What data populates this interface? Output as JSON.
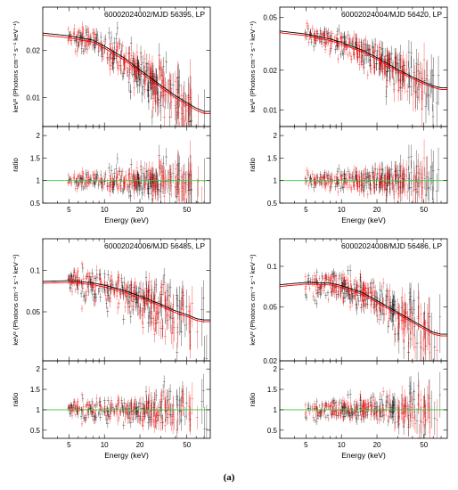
{
  "figure": {
    "caption": "(a)"
  },
  "chart_data": [
    {
      "type": "scatter",
      "title": "60002024002/MJD 56395, LP",
      "xlabel": "Energy (keV)",
      "ylabel_top": "keV² (Photons cm⁻² s⁻¹ keV⁻¹)",
      "ylabel_bottom": "ratio",
      "xscale": "log",
      "yscale_top": "log",
      "xlim": [
        3,
        79
      ],
      "ylim_top": [
        0.0065,
        0.038
      ],
      "ylim_bottom": [
        0.5,
        2.2
      ],
      "xticks": [
        5,
        10,
        20,
        50
      ],
      "yticks_top": [
        0.01,
        0.02
      ],
      "yticks_bottom": [
        0.5,
        1,
        1.5,
        2
      ],
      "model": {
        "x": [
          3,
          5,
          8,
          10,
          15,
          20,
          30,
          40,
          50,
          60,
          70
        ],
        "y": [
          0.0255,
          0.0245,
          0.023,
          0.021,
          0.0175,
          0.0148,
          0.0118,
          0.0101,
          0.0091,
          0.0084,
          0.008
        ]
      },
      "series": [
        {
          "color": "#000000",
          "spread": 0.11
        },
        {
          "color": "#ff0000",
          "spread": 0.11
        }
      ]
    },
    {
      "type": "scatter",
      "title": "60002024004/MJD 56420, LP",
      "xlabel": "Energy (keV)",
      "ylabel_top": "keV² (Photons cm⁻² s⁻¹ keV⁻¹)",
      "ylabel_bottom": "ratio",
      "xscale": "log",
      "yscale_top": "log",
      "xlim": [
        3,
        79
      ],
      "ylim_top": [
        0.0075,
        0.06
      ],
      "ylim_bottom": [
        0.5,
        2.2
      ],
      "xticks": [
        5,
        10,
        20,
        50
      ],
      "yticks_top": [
        0.01,
        0.02,
        0.05
      ],
      "yticks_bottom": [
        0.5,
        1,
        1.5,
        2
      ],
      "model": {
        "x": [
          3,
          5,
          8,
          10,
          15,
          20,
          30,
          40,
          50,
          60,
          70
        ],
        "y": [
          0.039,
          0.037,
          0.034,
          0.032,
          0.028,
          0.0245,
          0.02,
          0.0175,
          0.016,
          0.015,
          0.0145
        ]
      },
      "series": [
        {
          "color": "#000000",
          "spread": 0.1
        },
        {
          "color": "#ff0000",
          "spread": 0.1
        }
      ]
    },
    {
      "type": "scatter",
      "title": "60002024006/MJD 56485, LP",
      "xlabel": "Energy (keV)",
      "ylabel_top": "keV² (Photons cm⁻² s⁻¹ keV⁻¹)",
      "ylabel_bottom": "ratio",
      "xscale": "log",
      "yscale_top": "log",
      "xlim": [
        3,
        79
      ],
      "ylim_top": [
        0.022,
        0.17
      ],
      "ylim_bottom": [
        0.3,
        2.2
      ],
      "xticks": [
        5,
        10,
        20,
        50
      ],
      "yticks_top": [
        0.05,
        0.1
      ],
      "yticks_bottom": [
        0.5,
        1,
        1.5,
        2
      ],
      "model": {
        "x": [
          3,
          5,
          8,
          10,
          15,
          20,
          30,
          40,
          50,
          60,
          70
        ],
        "y": [
          0.082,
          0.083,
          0.08,
          0.077,
          0.07,
          0.064,
          0.056,
          0.05,
          0.047,
          0.044,
          0.043
        ]
      },
      "series": [
        {
          "color": "#000000",
          "spread": 0.12
        },
        {
          "color": "#ff0000",
          "spread": 0.12
        }
      ]
    },
    {
      "type": "scatter",
      "title": "60002024008/MJD 56486, LP",
      "xlabel": "Energy (keV)",
      "ylabel_top": "keV² (Photons cm⁻² s⁻¹ keV⁻¹)",
      "ylabel_bottom": "ratio",
      "xscale": "log",
      "yscale_top": "log",
      "xlim": [
        3,
        79
      ],
      "ylim_top": [
        0.02,
        0.16
      ],
      "ylim_bottom": [
        0.3,
        2.2
      ],
      "xticks": [
        5,
        10,
        20,
        50
      ],
      "yticks_top": [
        0.02,
        0.05,
        0.1
      ],
      "yticks_bottom": [
        0.5,
        1,
        1.5,
        2
      ],
      "model": {
        "x": [
          3,
          5,
          8,
          10,
          15,
          20,
          30,
          40,
          50,
          60,
          70
        ],
        "y": [
          0.072,
          0.075,
          0.074,
          0.071,
          0.063,
          0.055,
          0.045,
          0.039,
          0.035,
          0.032,
          0.031
        ]
      },
      "series": [
        {
          "color": "#000000",
          "spread": 0.12
        },
        {
          "color": "#ff0000",
          "spread": 0.12
        }
      ]
    }
  ]
}
